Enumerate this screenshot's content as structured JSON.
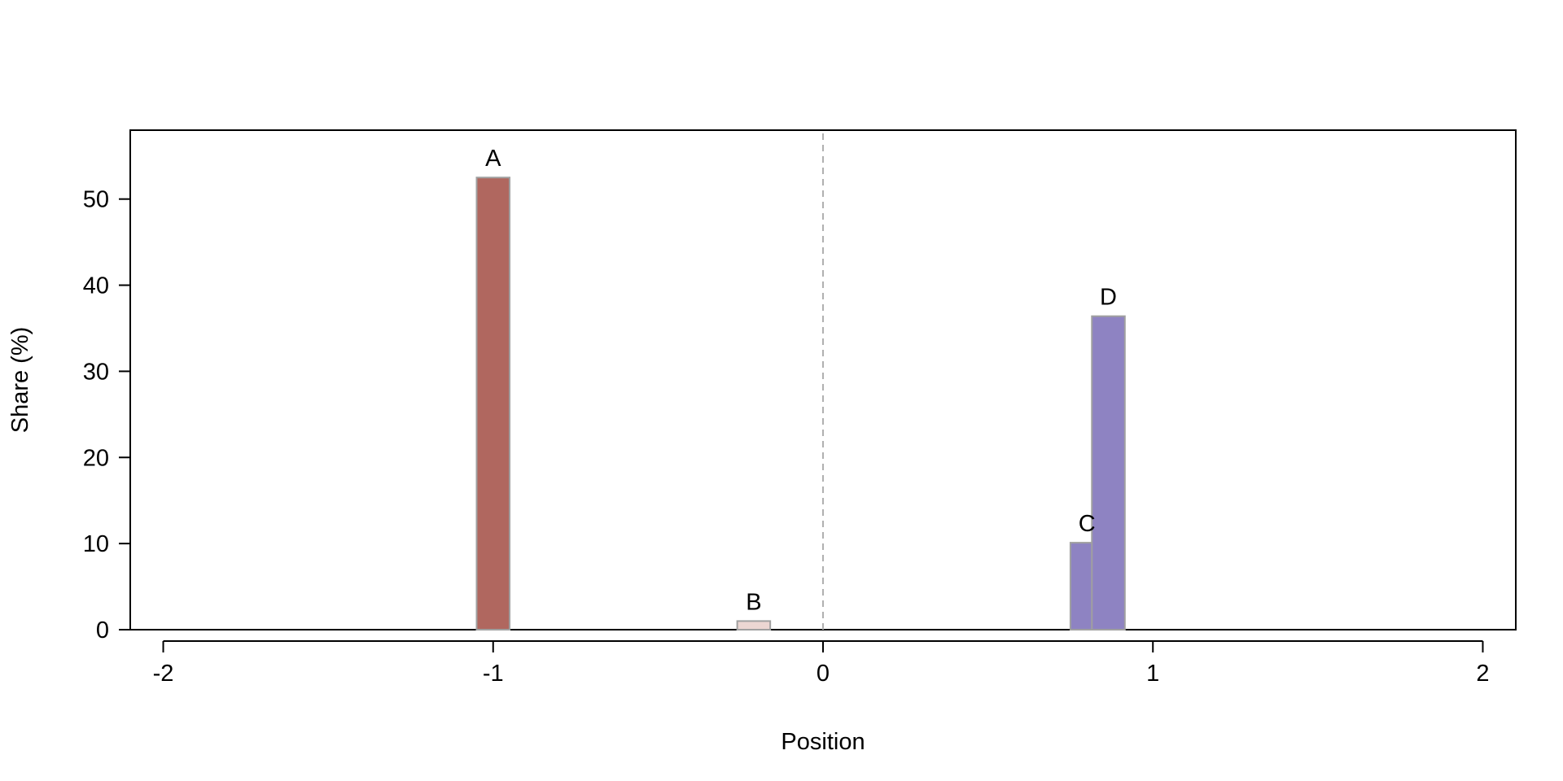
{
  "chart_data": {
    "type": "bar",
    "title": "",
    "xlabel": "Position",
    "ylabel": "Share (%)",
    "xlim": [
      -2.1,
      2.1
    ],
    "ylim": [
      0,
      58
    ],
    "x_ticks": [
      -2,
      -1,
      0,
      1,
      2
    ],
    "x_tick_labels": [
      "-2",
      "-1",
      "0",
      "1",
      "2"
    ],
    "y_ticks": [
      0,
      10,
      20,
      30,
      40,
      50
    ],
    "y_tick_labels": [
      "0",
      "10",
      "20",
      "30",
      "40",
      "50"
    ],
    "reference_line": {
      "x": 0,
      "style": "dashed",
      "color": "#b0b0b0"
    },
    "bar_width": 0.1,
    "grid": false,
    "bars": [
      {
        "label": "A",
        "x": -1.0,
        "value": 52.5,
        "color": "#b0675f"
      },
      {
        "label": "B",
        "x": -0.21,
        "value": 1.0,
        "color": "#ecd6d2"
      },
      {
        "label": "C",
        "x": 0.8,
        "value": 10.1,
        "color": "#8e83c2"
      },
      {
        "label": "D",
        "x": 0.865,
        "value": 36.4,
        "color": "#8e83c2"
      }
    ],
    "bar_edge_color": "#a0a0a0"
  }
}
